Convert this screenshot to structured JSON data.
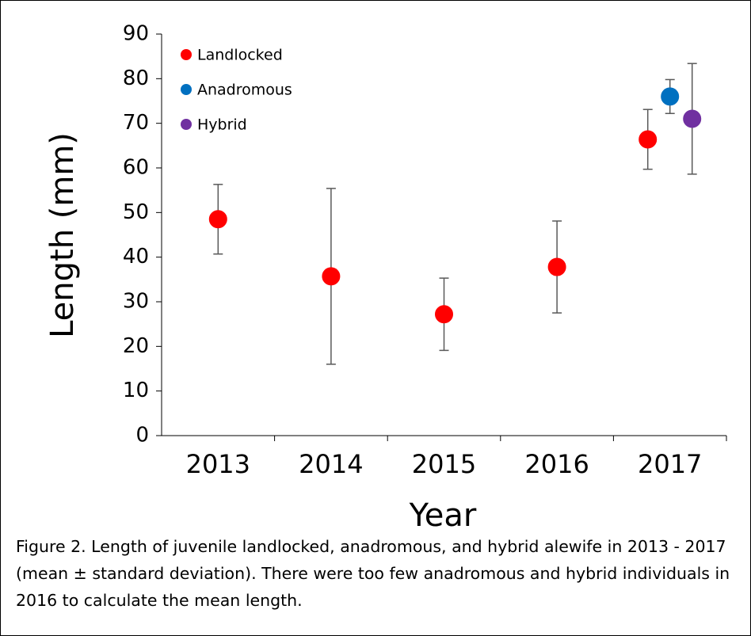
{
  "chart_data": {
    "type": "scatter",
    "x_label": "Year",
    "y_label": "Length (mm)",
    "caption": "Figure 2. Length of juvenile landlocked, anadromous, and hybrid alewife in 2013 - 2017 (mean ± standard deviation). There were too few anadromous and hybrid individuals in 2016 to calculate the mean length.",
    "categories": [
      "2013",
      "2014",
      "2015",
      "2016",
      "2017"
    ],
    "series": [
      {
        "name": "Landlocked",
        "color": "#ff0000",
        "values": [
          48.5,
          35.7,
          27.2,
          37.8,
          66.4
        ],
        "errors": [
          7.8,
          19.7,
          8.1,
          10.3,
          6.7
        ]
      },
      {
        "name": "Anadromous",
        "color": "#0070c0",
        "values": [
          null,
          null,
          null,
          null,
          76
        ],
        "errors": [
          null,
          null,
          null,
          null,
          3.8
        ]
      },
      {
        "name": "Hybrid",
        "color": "#7030a0",
        "values": [
          null,
          null,
          null,
          null,
          71
        ],
        "errors": [
          null,
          null,
          null,
          null,
          12.4
        ]
      }
    ],
    "ylim": [
      0,
      90
    ],
    "yticks": [
      0,
      10,
      20,
      30,
      40,
      50,
      60,
      70,
      80,
      90
    ],
    "legend": "top-left",
    "grid": false
  }
}
